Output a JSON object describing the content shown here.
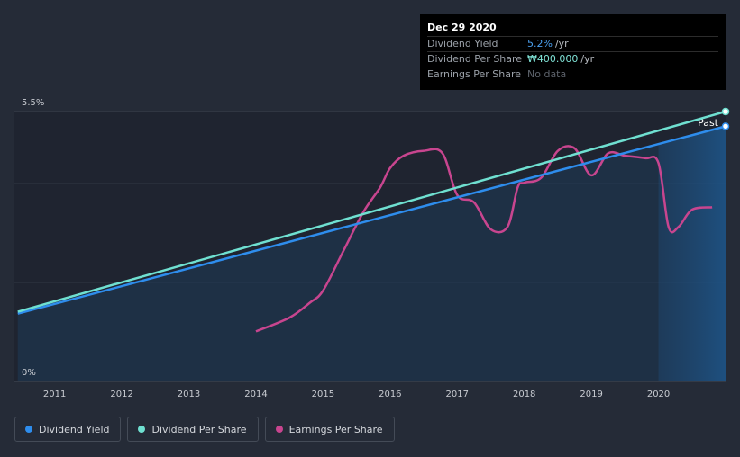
{
  "tooltip": {
    "date": "Dec 29 2020",
    "rows": [
      {
        "label": "Dividend Yield",
        "value": "5.2%",
        "unit": "/yr"
      },
      {
        "label": "Dividend Per Share",
        "value": "₩400.000",
        "unit": "/yr"
      },
      {
        "label": "Earnings Per Share",
        "value": "No data",
        "unit": ""
      }
    ]
  },
  "legend": [
    {
      "label": "Dividend Yield",
      "color": "#2e8ded"
    },
    {
      "label": "Dividend Per Share",
      "color": "#6fe0d1"
    },
    {
      "label": "Earnings Per Share",
      "color": "#c8458f"
    }
  ],
  "chart_data": {
    "type": "line",
    "title": "",
    "xlabel": "",
    "ylabel": "",
    "past_label": "Past",
    "y_tick_labels": [
      "5.5%",
      "0%"
    ],
    "ylim": [
      0,
      5.5
    ],
    "xlim": [
      2010.4,
      2021.0
    ],
    "x_ticks": [
      2011,
      2012,
      2013,
      2014,
      2015,
      2016,
      2017,
      2018,
      2019,
      2020
    ],
    "past_start": 2020.0,
    "series": [
      {
        "name": "Dividend Yield",
        "color": "#2e8ded",
        "x": [
          2010.45,
          2021.0
        ],
        "values": [
          1.38,
          5.2
        ]
      },
      {
        "name": "Dividend Per Share",
        "color": "#6fe0d1",
        "x": [
          2010.45,
          2021.0
        ],
        "values": [
          1.42,
          5.5
        ]
      },
      {
        "name": "Earnings Per Share",
        "color": "#c8458f",
        "x": [
          2014.0,
          2014.5,
          2014.8,
          2015.0,
          2015.3,
          2015.6,
          2015.85,
          2016.0,
          2016.2,
          2016.5,
          2016.78,
          2017.0,
          2017.25,
          2017.5,
          2017.75,
          2017.9,
          2018.0,
          2018.25,
          2018.5,
          2018.75,
          2019.0,
          2019.25,
          2019.5,
          2019.8,
          2020.0,
          2020.15,
          2020.3,
          2020.5,
          2020.8
        ],
        "values": [
          1.02,
          1.3,
          1.6,
          1.85,
          2.65,
          3.45,
          3.95,
          4.35,
          4.6,
          4.7,
          4.65,
          3.8,
          3.65,
          3.1,
          3.15,
          3.95,
          4.05,
          4.15,
          4.7,
          4.75,
          4.2,
          4.65,
          4.6,
          4.55,
          4.45,
          3.15,
          3.15,
          3.5,
          3.55
        ]
      }
    ]
  }
}
